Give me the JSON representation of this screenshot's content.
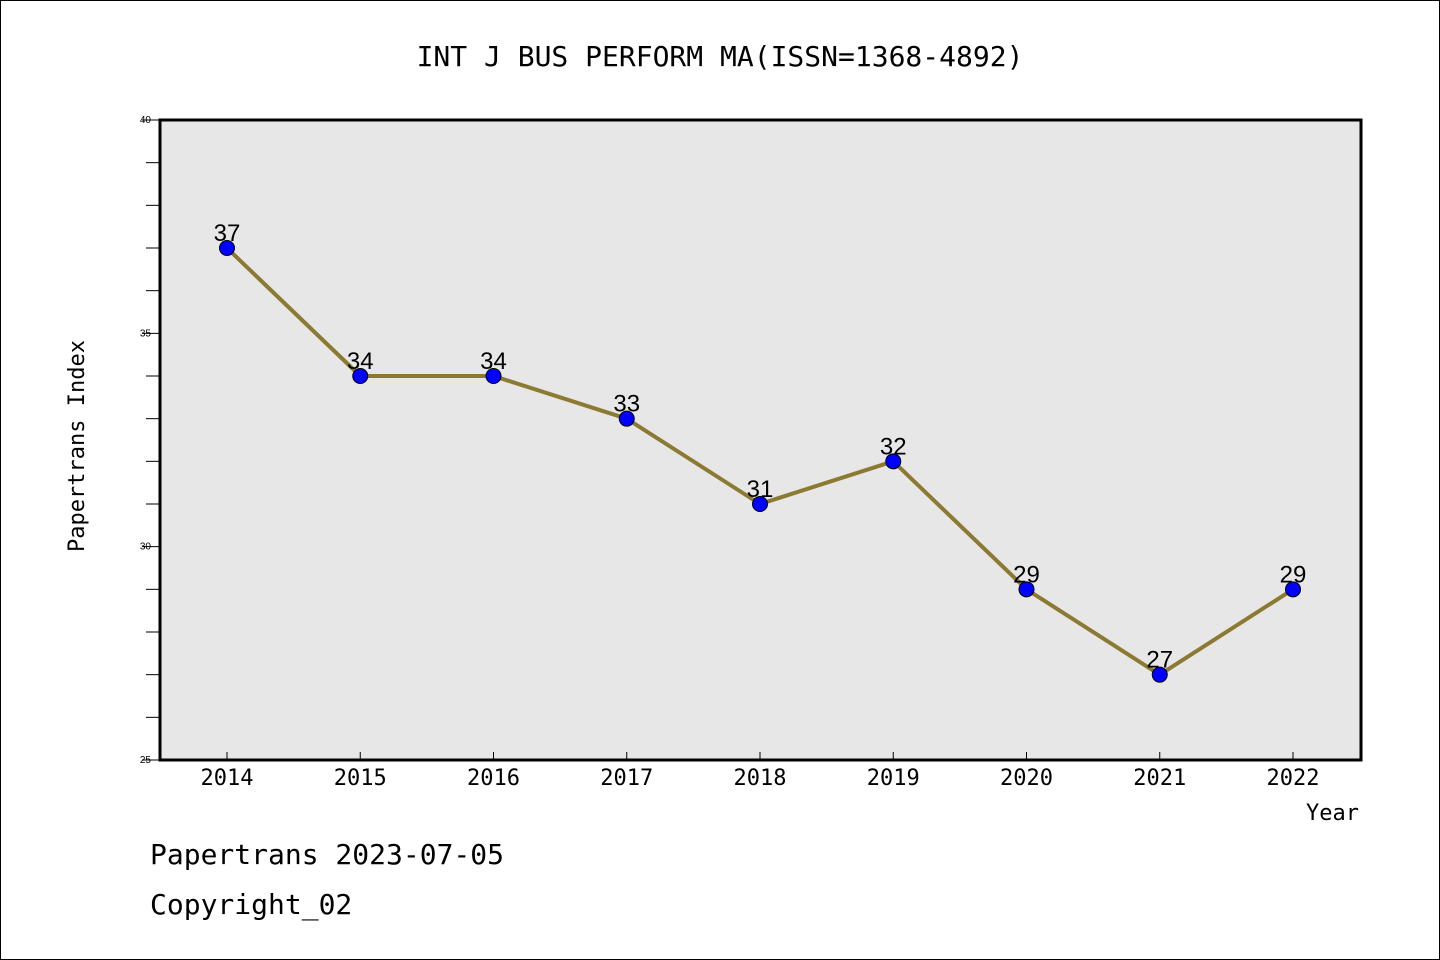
{
  "chart_data": {
    "type": "line",
    "title": "INT J BUS PERFORM MA(ISSN=1368-4892)",
    "xlabel": "Year",
    "ylabel": "Papertrans Index",
    "categories": [
      "2014",
      "2015",
      "2016",
      "2017",
      "2018",
      "2019",
      "2020",
      "2021",
      "2022"
    ],
    "series": [
      {
        "values": [
          37,
          34,
          34,
          33,
          31,
          32,
          29,
          27,
          29
        ]
      }
    ],
    "ylim": [
      25,
      40
    ],
    "yticks": [
      25,
      30,
      35,
      40
    ],
    "grid": false,
    "line_color": "#8c7a33",
    "marker_color": "#0000ff",
    "plot_background": "#e7e7e7"
  },
  "footer": {
    "line1": "Papertrans 2023-07-05",
    "line2": "Copyright_02"
  }
}
